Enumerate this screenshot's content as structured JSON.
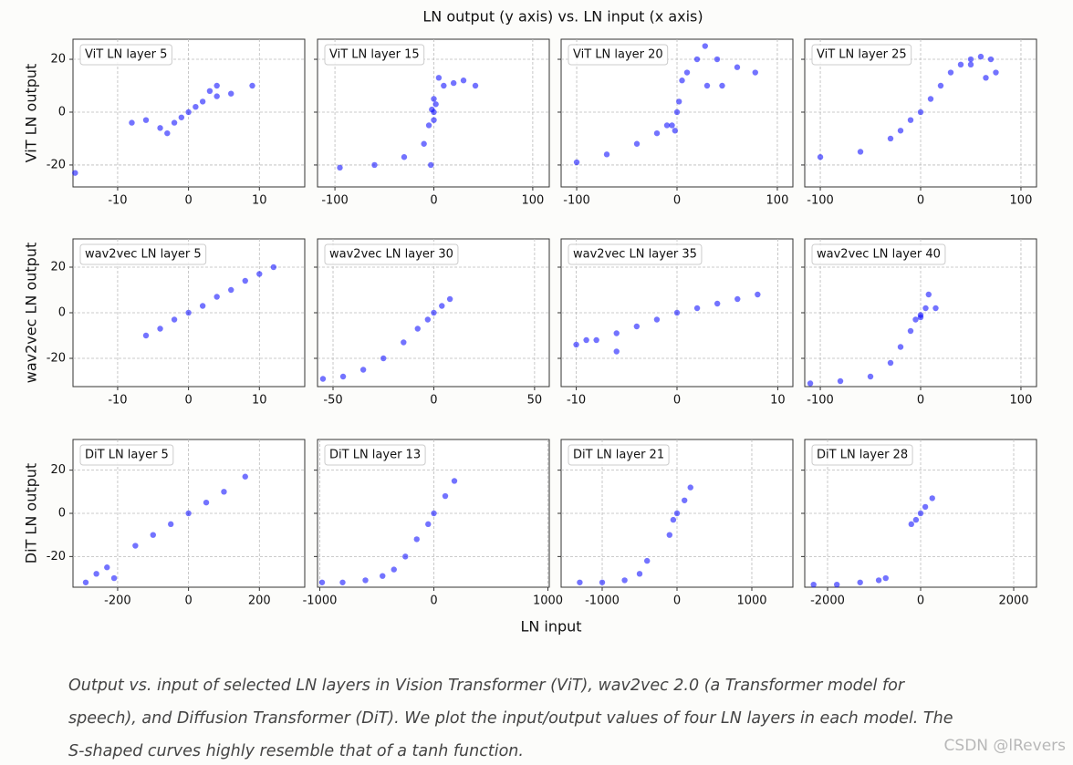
{
  "figure": {
    "title": "LN output (y axis) vs. LN input (x axis)",
    "xlabel": "LN input",
    "ylabels": [
      "ViT LN output",
      "wav2vec LN output",
      "DiT LN output"
    ]
  },
  "chart_data": [
    {
      "type": "scatter",
      "title": "ViT LN layer 5",
      "color": "#0000ff",
      "grid": true,
      "xlim": [
        -16.3,
        16.4
      ],
      "ylim": [
        -28.3,
        27.6
      ],
      "xticks": [
        -10,
        0,
        10
      ],
      "yticks": [
        -20,
        0,
        20
      ],
      "x": [
        -16,
        -8,
        -6,
        -4,
        -3,
        -2,
        -1,
        0,
        1,
        2,
        3,
        4,
        4,
        6,
        9
      ],
      "values": [
        -23,
        -4,
        -3,
        -6,
        -8,
        -4,
        -2,
        0,
        2,
        4,
        8,
        6,
        10,
        7,
        10
      ]
    },
    {
      "type": "scatter",
      "title": "ViT LN layer 15",
      "color": "#0000ff",
      "grid": true,
      "xlim": [
        -117.6,
        116.7
      ],
      "ylim": [
        -28.3,
        27.6
      ],
      "xticks": [
        -100,
        0,
        100
      ],
      "yticks": [
        -20,
        0,
        20
      ],
      "x": [
        -95,
        -60,
        -30,
        -10,
        -5,
        -3,
        0,
        0,
        2,
        5,
        10,
        20,
        30,
        42,
        0,
        -2
      ],
      "values": [
        -21,
        -20,
        -17,
        -12,
        -5,
        -20,
        0,
        -3,
        3,
        13,
        10,
        11,
        12,
        10,
        5,
        1
      ]
    },
    {
      "type": "scatter",
      "title": "ViT LN layer 20",
      "color": "#0000ff",
      "grid": true,
      "xlim": [
        -115.5,
        115.5
      ],
      "ylim": [
        -28.3,
        27.6
      ],
      "xticks": [
        -100,
        0,
        100
      ],
      "yticks": [
        -20,
        0,
        20
      ],
      "x": [
        -100,
        -70,
        -40,
        -20,
        -10,
        -5,
        -2,
        0,
        2,
        5,
        10,
        20,
        28,
        40,
        60,
        78,
        45,
        30
      ],
      "values": [
        -19,
        -16,
        -12,
        -8,
        -5,
        -5,
        -7,
        0,
        4,
        12,
        15,
        20,
        25,
        20,
        17,
        15,
        10,
        10
      ]
    },
    {
      "type": "scatter",
      "title": "ViT LN layer 25",
      "color": "#0000ff",
      "grid": true,
      "xlim": [
        -115.5,
        115.5
      ],
      "ylim": [
        -28.3,
        27.6
      ],
      "xticks": [
        -100,
        0,
        100
      ],
      "yticks": [
        -20,
        0,
        20
      ],
      "x": [
        -100,
        -60,
        -30,
        -20,
        -10,
        0,
        10,
        20,
        30,
        40,
        50,
        60,
        70,
        75,
        65,
        50
      ],
      "values": [
        -17,
        -15,
        -10,
        -7,
        -3,
        0,
        5,
        10,
        15,
        18,
        20,
        21,
        20,
        15,
        13,
        18
      ]
    },
    {
      "type": "scatter",
      "title": "wav2vec LN layer 5",
      "color": "#0000ff",
      "grid": true,
      "xlim": [
        -16.3,
        16.4
      ],
      "ylim": [
        -32.4,
        32.4
      ],
      "xticks": [
        -10,
        0,
        10
      ],
      "yticks": [
        -20,
        0,
        20
      ],
      "x": [
        -6,
        -4,
        -2,
        0,
        2,
        4,
        6,
        8,
        10,
        12
      ],
      "values": [
        -10,
        -7,
        -3,
        0,
        3,
        7,
        10,
        14,
        17,
        20
      ]
    },
    {
      "type": "scatter",
      "title": "wav2vec LN layer 30",
      "color": "#0000ff",
      "grid": true,
      "xlim": [
        -57.7,
        57.3
      ],
      "ylim": [
        -32.4,
        32.4
      ],
      "xticks": [
        -50,
        0,
        50
      ],
      "yticks": [
        -20,
        0,
        20
      ],
      "x": [
        -55,
        -45,
        -35,
        -25,
        -15,
        -8,
        -3,
        0,
        4,
        8
      ],
      "values": [
        -29,
        -28,
        -25,
        -20,
        -13,
        -7,
        -3,
        0,
        3,
        6
      ]
    },
    {
      "type": "scatter",
      "title": "wav2vec LN layer 35",
      "color": "#0000ff",
      "grid": true,
      "xlim": [
        -11.5,
        11.5
      ],
      "ylim": [
        -32.4,
        32.4
      ],
      "xticks": [
        -10,
        0,
        10
      ],
      "yticks": [
        -20,
        0,
        20
      ],
      "x": [
        -10,
        -8,
        -6,
        -4,
        -2,
        0,
        2,
        4,
        6,
        8,
        -9,
        -6
      ],
      "values": [
        -14,
        -12,
        -9,
        -6,
        -3,
        0,
        2,
        4,
        6,
        8,
        -12,
        -17
      ]
    },
    {
      "type": "scatter",
      "title": "wav2vec LN layer 40",
      "color": "#0000ff",
      "grid": true,
      "xlim": [
        -115.5,
        115.5
      ],
      "ylim": [
        -32.4,
        32.4
      ],
      "xticks": [
        -100,
        0,
        100
      ],
      "yticks": [
        -20,
        0,
        20
      ],
      "x": [
        -110,
        -80,
        -50,
        -30,
        -20,
        -10,
        -5,
        0,
        5,
        8,
        15,
        0
      ],
      "values": [
        -31,
        -30,
        -28,
        -22,
        -15,
        -8,
        -3,
        -1,
        2,
        8,
        2,
        -2
      ]
    },
    {
      "type": "scatter",
      "title": "DiT LN layer 5",
      "color": "#0000ff",
      "grid": true,
      "xlim": [
        -326,
        328
      ],
      "ylim": [
        -34.2,
        34.2
      ],
      "xticks": [
        -200,
        0,
        200
      ],
      "yticks": [
        -20,
        0,
        20
      ],
      "x": [
        -290,
        -260,
        -230,
        -210,
        -150,
        -100,
        -50,
        0,
        50,
        100,
        160
      ],
      "values": [
        -32,
        -28,
        -25,
        -30,
        -15,
        -10,
        -5,
        0,
        5,
        10,
        17
      ]
    },
    {
      "type": "scatter",
      "title": "DiT LN layer 13",
      "color": "#0000ff",
      "grid": true,
      "xlim": [
        -1020,
        1012
      ],
      "ylim": [
        -34.2,
        34.2
      ],
      "xticks": [
        -1000,
        0,
        1000
      ],
      "yticks": [
        -20,
        0,
        20
      ],
      "x": [
        -980,
        -800,
        -600,
        -450,
        -350,
        -250,
        -150,
        -50,
        0,
        100,
        180
      ],
      "values": [
        -32,
        -32,
        -31,
        -29,
        -26,
        -20,
        -12,
        -5,
        0,
        8,
        15
      ]
    },
    {
      "type": "scatter",
      "title": "DiT LN layer 21",
      "color": "#0000ff",
      "grid": true,
      "xlim": [
        -1549,
        1549
      ],
      "ylim": [
        -34.2,
        34.2
      ],
      "xticks": [
        -1000,
        0,
        1000
      ],
      "yticks": [
        -20,
        0,
        20
      ],
      "x": [
        -1300,
        -1000,
        -700,
        -500,
        -400,
        -100,
        -50,
        0,
        100,
        180
      ],
      "values": [
        -32,
        -32,
        -31,
        -28,
        -22,
        -10,
        -3,
        0,
        6,
        12
      ]
    },
    {
      "type": "scatter",
      "title": "DiT LN layer 28",
      "color": "#0000ff",
      "grid": true,
      "xlim": [
        -2490,
        2490
      ],
      "ylim": [
        -34.2,
        34.2
      ],
      "xticks": [
        -2000,
        0,
        2000
      ],
      "yticks": [
        -20,
        0,
        20
      ],
      "x": [
        -2300,
        -1800,
        -1300,
        -900,
        -750,
        -200,
        -100,
        0,
        100,
        250
      ],
      "values": [
        -33,
        -33,
        -32,
        -31,
        -30,
        -5,
        -3,
        0,
        3,
        7
      ]
    }
  ],
  "caption": [
    "Output vs. input of selected LN layers in Vision Transformer (ViT), wav2vec 2.0 (a Transformer model for",
    "speech), and Diffusion Transformer (DiT). We plot the input/output values of four LN layers in each model. The",
    "S-shaped curves highly resemble that of a tanh function."
  ],
  "watermark": "CSDN @lRevers"
}
